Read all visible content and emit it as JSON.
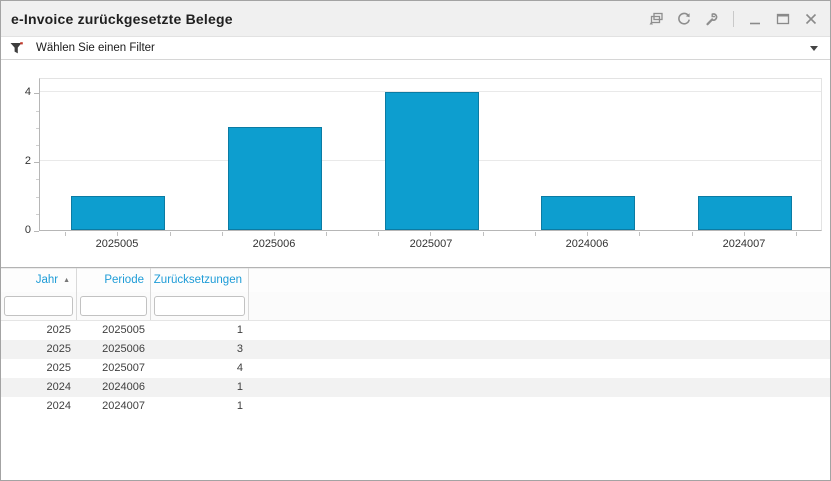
{
  "window": {
    "title": "e-Invoice zurückgesetzte Belege",
    "toolbar_icons": [
      "cascade-windows-icon",
      "refresh-icon",
      "wrench-icon"
    ],
    "window_controls": [
      "minimize-icon",
      "maximize-icon",
      "close-icon"
    ]
  },
  "filter_bar": {
    "label": "Wählen Sie einen Filter",
    "left_icon": "filter-funnel-icon",
    "right_icon": "chevron-down-icon"
  },
  "chart_data": {
    "type": "bar",
    "categories": [
      "2025005",
      "2025006",
      "2025007",
      "2024006",
      "2024007"
    ],
    "values": [
      1,
      3,
      4,
      1,
      1
    ],
    "title": "",
    "xlabel": "",
    "ylabel": "",
    "ylim": [
      0,
      4.45
    ],
    "yticks_major": [
      0,
      2,
      4
    ],
    "ytick_minor_step": 0.5,
    "grid": true,
    "legend": false,
    "bar_color": "#0d9ecf",
    "bar_border_color": "#0b7ba3"
  },
  "table": {
    "columns": [
      {
        "label": "Jahr",
        "sort": "asc"
      },
      {
        "label": "Periode",
        "sort": null
      },
      {
        "label": "Zurücksetzungen",
        "sort": null
      }
    ],
    "filter_values": [
      "",
      "",
      ""
    ],
    "rows": [
      [
        "2025",
        "2025005",
        "1"
      ],
      [
        "2025",
        "2025006",
        "3"
      ],
      [
        "2025",
        "2025007",
        "4"
      ],
      [
        "2024",
        "2024006",
        "1"
      ],
      [
        "2024",
        "2024007",
        "1"
      ]
    ]
  },
  "colors": {
    "accent_blue": "#1e9cd7",
    "bar_fill": "#0d9ecf",
    "bar_border": "#0b7ba3",
    "row_stripe": "#f2f2f2",
    "titlebar_bg": "#f0f0f0"
  }
}
